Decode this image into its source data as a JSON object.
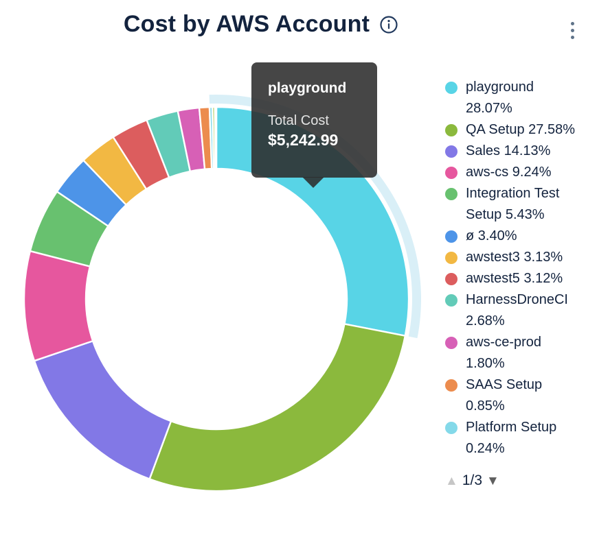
{
  "header": {
    "title": "Cost by AWS Account"
  },
  "icons": {
    "info": "info-circle-icon",
    "menu": "kebab-vertical-icon",
    "page_up": "triangle-up-icon",
    "page_down": "triangle-down-icon"
  },
  "tooltip": {
    "series": "playground",
    "label": "Total Cost",
    "value": "$5,242.99"
  },
  "legend": {
    "items": [
      {
        "label": "playground 28.07%",
        "color": "#58D4E6"
      },
      {
        "label": "QA Setup 27.58%",
        "color": "#8BB93D"
      },
      {
        "label": "Sales 14.13%",
        "color": "#8278E6"
      },
      {
        "label": "aws-cs 9.24%",
        "color": "#E6579E"
      },
      {
        "label": "Integration Test Setup 5.43%",
        "color": "#68C16F"
      },
      {
        "label": "ø 3.40%",
        "color": "#4D94E8"
      },
      {
        "label": "awstest3 3.13%",
        "color": "#F2B843"
      },
      {
        "label": "awstest5 3.12%",
        "color": "#DC5D5E"
      },
      {
        "label": "HarnessDroneCI 2.68%",
        "color": "#62CBB8"
      },
      {
        "label": "aws-ce-prod 1.80%",
        "color": "#D760B6"
      },
      {
        "label": "SAAS Setup 0.85%",
        "color": "#EC8C4E"
      },
      {
        "label": "Platform Setup 0.24%",
        "color": "#84D9E9"
      }
    ],
    "partial_item_color": "#A4C24D",
    "pagination": {
      "current": "1/3",
      "up_enabled": false,
      "down_enabled": true
    }
  },
  "chart_data": {
    "type": "pie",
    "subtype": "donut",
    "title": "Cost by AWS Account",
    "unit": "percent",
    "start_angle_deg": 0,
    "direction": "clockwise",
    "inner_radius_ratio": 0.68,
    "legend_position": "right",
    "slices": [
      {
        "name": "playground",
        "pct": 28.07,
        "color": "#58D4E6"
      },
      {
        "name": "QA Setup",
        "pct": 27.58,
        "color": "#8BB93D"
      },
      {
        "name": "Sales",
        "pct": 14.13,
        "color": "#8278E6"
      },
      {
        "name": "aws-cs",
        "pct": 9.24,
        "color": "#E6579E"
      },
      {
        "name": "Integration Test Setup",
        "pct": 5.43,
        "color": "#68C16F"
      },
      {
        "name": "ø",
        "pct": 3.4,
        "color": "#4D94E8"
      },
      {
        "name": "awstest3",
        "pct": 3.13,
        "color": "#F2B843"
      },
      {
        "name": "awstest5",
        "pct": 3.12,
        "color": "#DC5D5E"
      },
      {
        "name": "HarnessDroneCI",
        "pct": 2.68,
        "color": "#62CBB8"
      },
      {
        "name": "aws-ce-prod",
        "pct": 1.8,
        "color": "#D760B6"
      },
      {
        "name": "SAAS Setup",
        "pct": 0.85,
        "color": "#EC8C4E"
      },
      {
        "name": "Platform Setup",
        "pct": 0.24,
        "color": "#84D9E9"
      },
      {
        "name": "(unlabeled)",
        "pct": 0.2,
        "color": "#A9C94E"
      },
      {
        "name": "(unlabeled)",
        "pct": 0.13,
        "color": "#58CBBE"
      }
    ],
    "highlight": {
      "name": "playground",
      "halo_color": "#D9EFF7"
    },
    "selected": {
      "name": "playground",
      "total_cost": "$5,242.99"
    }
  },
  "colors": {
    "text": "#13233E",
    "tooltip_bg": "rgba(44,44,44,0.88)",
    "menu_dots": "#5F7389",
    "page_up_arrow": "#C6C6C6",
    "page_down_arrow": "#5F5F5F"
  }
}
